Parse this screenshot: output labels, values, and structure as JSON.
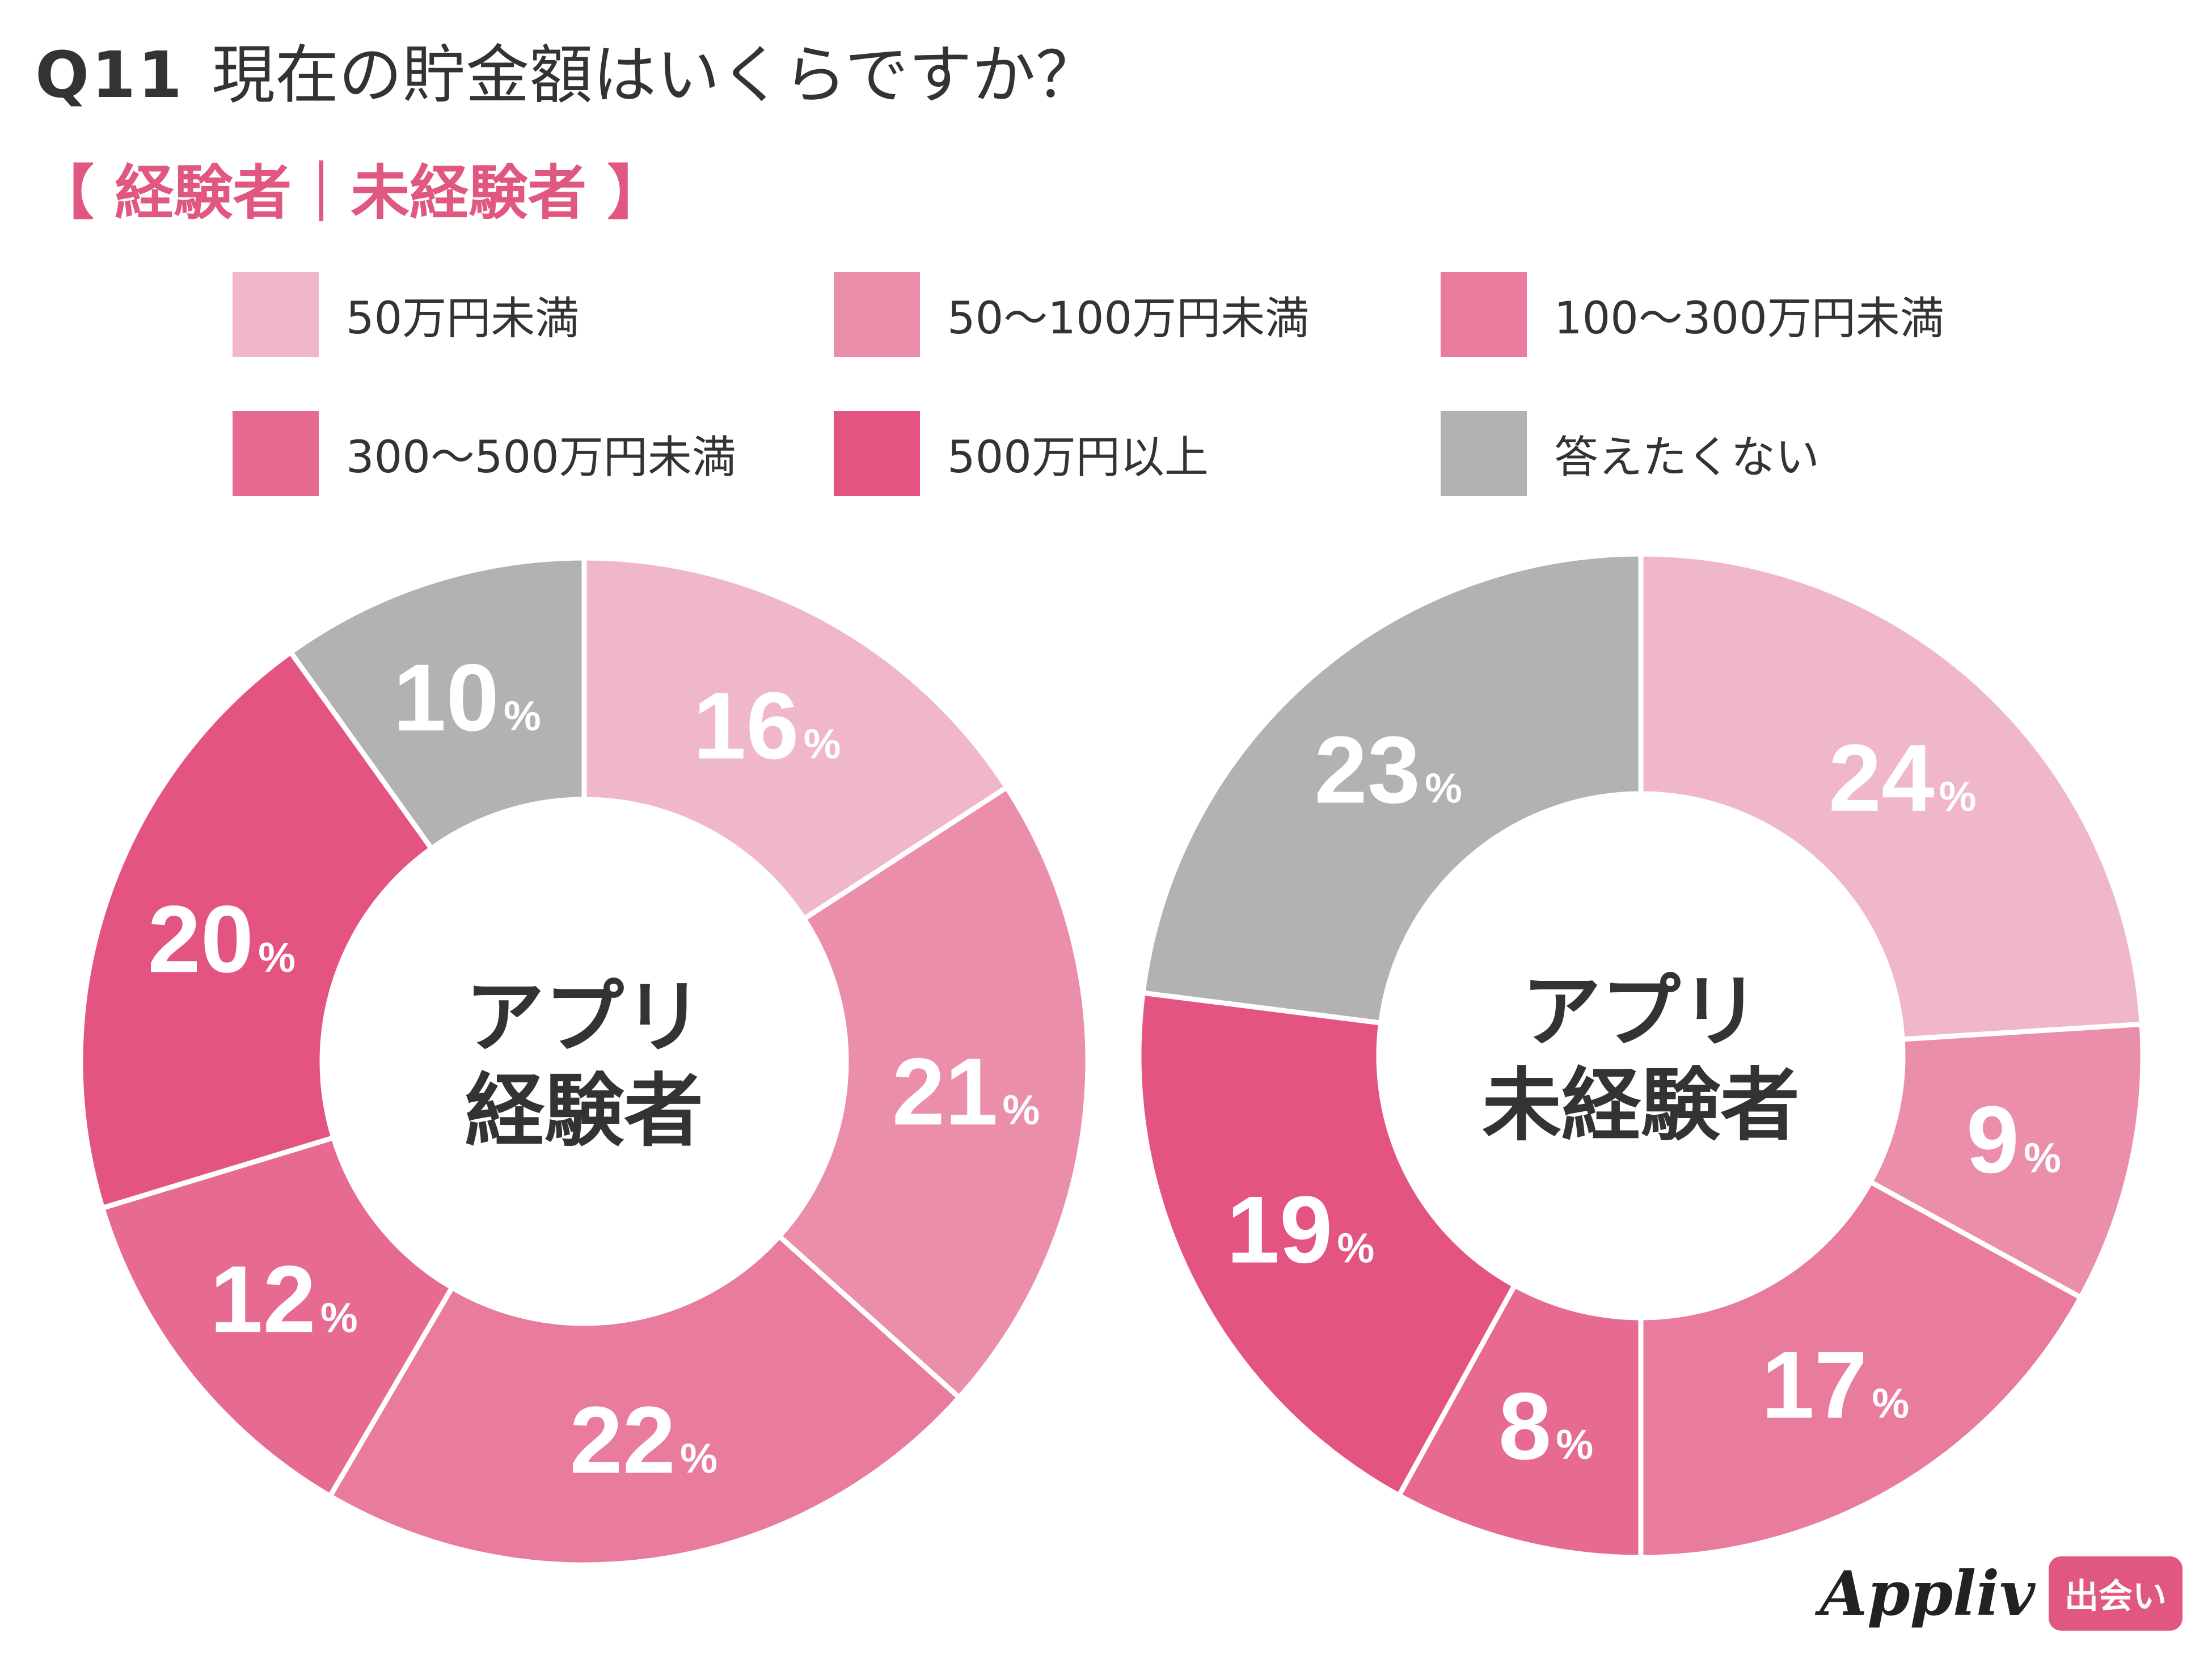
{
  "header": {
    "question_no": "Q11",
    "question_text": "現在の貯金額はいくらですか？",
    "subtitle": "【 経験者｜未経験者 】"
  },
  "colors": {
    "title": "#333333",
    "accent": "#e0577f",
    "label": "#ffffff",
    "center_text": "#333333",
    "gap": "#ffffff"
  },
  "legend": [
    {
      "label": "50万円未満",
      "color": "#f0b6c9"
    },
    {
      "label": "50〜100万円未満",
      "color": "#eb8ea9"
    },
    {
      "label": "100〜300万円未満",
      "color": "#e97b9c"
    },
    {
      "label": "300〜500万円未満",
      "color": "#e76a90"
    },
    {
      "label": "500万円以上",
      "color": "#e35580"
    },
    {
      "label": "答えたくない",
      "color": "#b2b2b2"
    }
  ],
  "chart_data": [
    {
      "type": "pie",
      "center_label": [
        "アプリ",
        "経験者"
      ],
      "categories": [
        "50万円未満",
        "50〜100万円未満",
        "100〜300万円未満",
        "300〜500万円未満",
        "500万円以上",
        "答えたくない"
      ],
      "values": [
        16,
        21,
        22,
        12,
        20,
        10
      ],
      "unit": "%"
    },
    {
      "type": "pie",
      "center_label": [
        "アプリ",
        "未経験者"
      ],
      "categories": [
        "50万円未満",
        "50〜100万円未満",
        "100〜300万円未満",
        "300〜500万円未満",
        "500万円以上",
        "答えたくない"
      ],
      "values": [
        24,
        9,
        17,
        8,
        19,
        23
      ],
      "unit": "%"
    }
  ],
  "brand": {
    "name": "Appliv",
    "badge": "出会い"
  }
}
